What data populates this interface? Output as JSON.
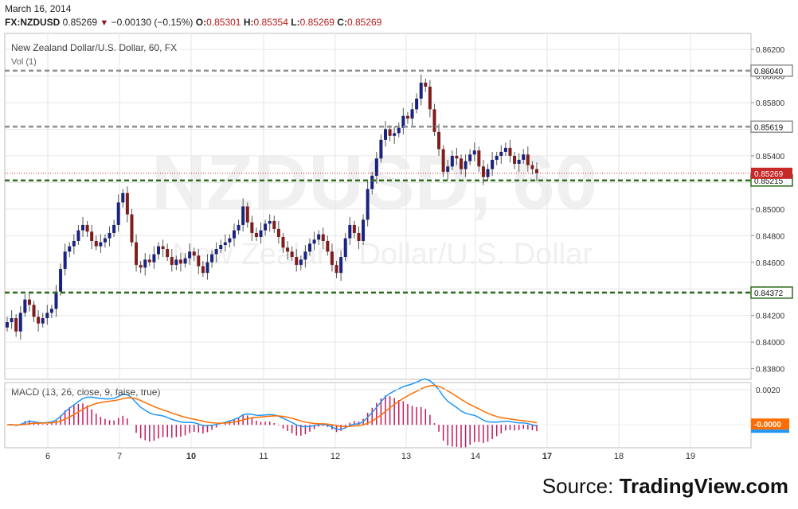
{
  "header": {
    "date": "March 16, 2014",
    "symbol": "FX:NZDUSD",
    "last": "0.85269",
    "change": "−0.00130",
    "change_pct": "(−0.15%)",
    "o_label": "O:",
    "o": "0.85301",
    "h_label": "H:",
    "h": "0.85354",
    "l_label": "L:",
    "l": "0.85269",
    "c_label": "C:",
    "c": "0.85269"
  },
  "source": {
    "prefix": "Source: ",
    "brand": "TradingView.com"
  },
  "colors": {
    "up_candle": "#1a237e",
    "down_candle": "#7f1d1d",
    "resistance_line": "#8f8f8f",
    "support_line": "#2e6b1f",
    "macd_line": "#2196f3",
    "signal_line": "#ff6d00",
    "histogram": "#c2185b",
    "grid": "#e6e6e6",
    "watermark": "#f0f0f0"
  },
  "chart_data": [
    {
      "type": "candlestick",
      "title": "New Zealand Dollar/U.S. Dollar, 60, FX",
      "subtitle": "Vol (1)",
      "watermark": "NZDUSD, 60",
      "watermark_sub": "New Zealand Dollar/U.S. Dollar",
      "x_ticks": [
        "6",
        "7",
        "10",
        "11",
        "12",
        "13",
        "14",
        "17",
        "18",
        "19"
      ],
      "x_ticks_bold": [
        "10",
        "17"
      ],
      "y_ticks": [
        "0.86200",
        "0.86000",
        "0.85800",
        "0.85600",
        "0.85400",
        "0.85200",
        "0.85000",
        "0.84800",
        "0.84600",
        "0.84400",
        "0.84200",
        "0.84000",
        "0.83800"
      ],
      "ylim": [
        0.8372,
        0.8632
      ],
      "grid": true,
      "horizontal_lines": [
        {
          "label": "0.86040",
          "value": 0.8604,
          "kind": "resistance"
        },
        {
          "label": "0.85619",
          "value": 0.85619,
          "kind": "resistance"
        },
        {
          "label": "0.85215",
          "value": 0.85215,
          "kind": "support"
        },
        {
          "label": "0.84372",
          "value": 0.84372,
          "kind": "support"
        }
      ],
      "last_price": {
        "label": "0.85269",
        "value": 0.85269
      },
      "close_series": [
        0.8415,
        0.8418,
        0.8408,
        0.8422,
        0.8432,
        0.8428,
        0.8419,
        0.8414,
        0.8418,
        0.8422,
        0.8425,
        0.8438,
        0.8455,
        0.8468,
        0.8472,
        0.8476,
        0.8484,
        0.8488,
        0.8483,
        0.8476,
        0.8472,
        0.8475,
        0.8478,
        0.8482,
        0.8488,
        0.8505,
        0.8512,
        0.8496,
        0.8475,
        0.8458,
        0.8456,
        0.8462,
        0.846,
        0.8466,
        0.8472,
        0.847,
        0.8464,
        0.8458,
        0.8462,
        0.8459,
        0.8463,
        0.8468,
        0.8465,
        0.8457,
        0.8452,
        0.846,
        0.8466,
        0.847,
        0.8473,
        0.8475,
        0.8478,
        0.8484,
        0.8488,
        0.8502,
        0.849,
        0.8482,
        0.8479,
        0.8484,
        0.8489,
        0.8491,
        0.8485,
        0.8479,
        0.8471,
        0.8468,
        0.8464,
        0.8458,
        0.8462,
        0.8468,
        0.8474,
        0.8477,
        0.8481,
        0.8476,
        0.8468,
        0.8458,
        0.8452,
        0.8464,
        0.8478,
        0.8488,
        0.8482,
        0.8476,
        0.8492,
        0.8515,
        0.8525,
        0.8538,
        0.8552,
        0.856,
        0.8555,
        0.8557,
        0.8561,
        0.857,
        0.8568,
        0.8575,
        0.8583,
        0.8595,
        0.8592,
        0.8575,
        0.8558,
        0.8545,
        0.8528,
        0.8532,
        0.854,
        0.8538,
        0.853,
        0.8536,
        0.8541,
        0.8544,
        0.8532,
        0.8524,
        0.853,
        0.8537,
        0.854,
        0.8543,
        0.8546,
        0.854,
        0.8534,
        0.8537,
        0.8541,
        0.8533,
        0.853,
        0.8527
      ]
    },
    {
      "type": "macd",
      "title": "MACD (13, 26, close, 9, false, true)",
      "y_ticks": [
        "0.0020"
      ],
      "last_value_label": "-0.0000",
      "ylim": [
        -0.0013,
        0.0024
      ]
    }
  ]
}
